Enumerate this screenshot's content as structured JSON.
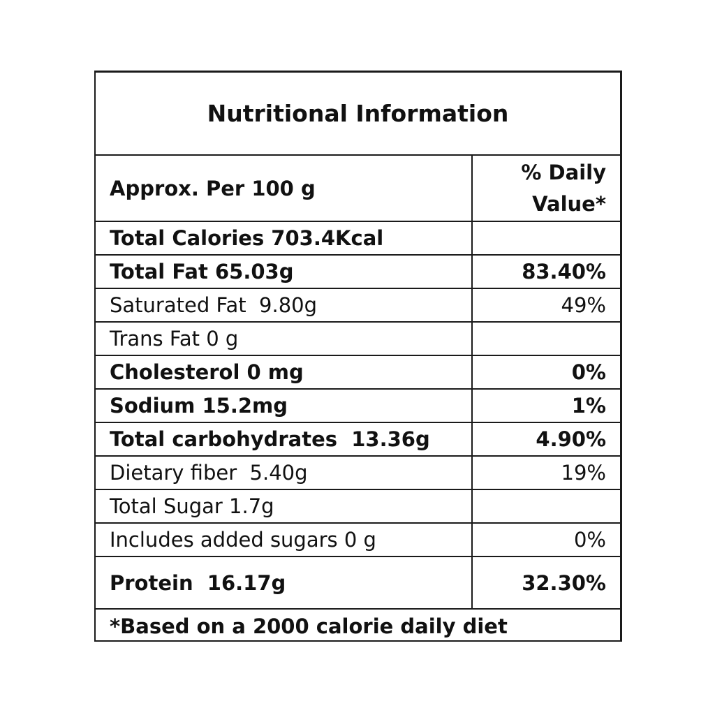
{
  "title": "Nutritional Information",
  "header": {
    "serving": "Approx. Per 100 g",
    "dv_line1": "% Daily",
    "dv_line2": "Value*"
  },
  "rows": [
    {
      "name": "Total Calories 703.4Kcal",
      "dv": "",
      "bold": true
    },
    {
      "name": "Total Fat 65.03g",
      "dv": "83.40%",
      "bold": true
    },
    {
      "name": "Saturated Fat  9.80g",
      "dv": "49%",
      "bold": false
    },
    {
      "name": "Trans Fat 0 g",
      "dv": "",
      "bold": false
    },
    {
      "name": "Cholesterol 0 mg",
      "dv": "0%",
      "bold": true
    },
    {
      "name": "Sodium 15.2mg",
      "dv": "1%",
      "bold": true
    },
    {
      "name": "Total carbohydrates  13.36g",
      "dv": "4.90%",
      "bold": true
    },
    {
      "name": "Dietary fiber  5.40g",
      "dv": "19%",
      "bold": false
    },
    {
      "name": "Total Sugar 1.7g",
      "dv": "",
      "bold": false
    },
    {
      "name": "Includes added sugars 0 g",
      "dv": "0%",
      "bold": false
    },
    {
      "name": "Protein  16.17g",
      "dv": "32.30%",
      "bold": true
    }
  ],
  "footnote": "*Based on a 2000 calorie daily diet"
}
